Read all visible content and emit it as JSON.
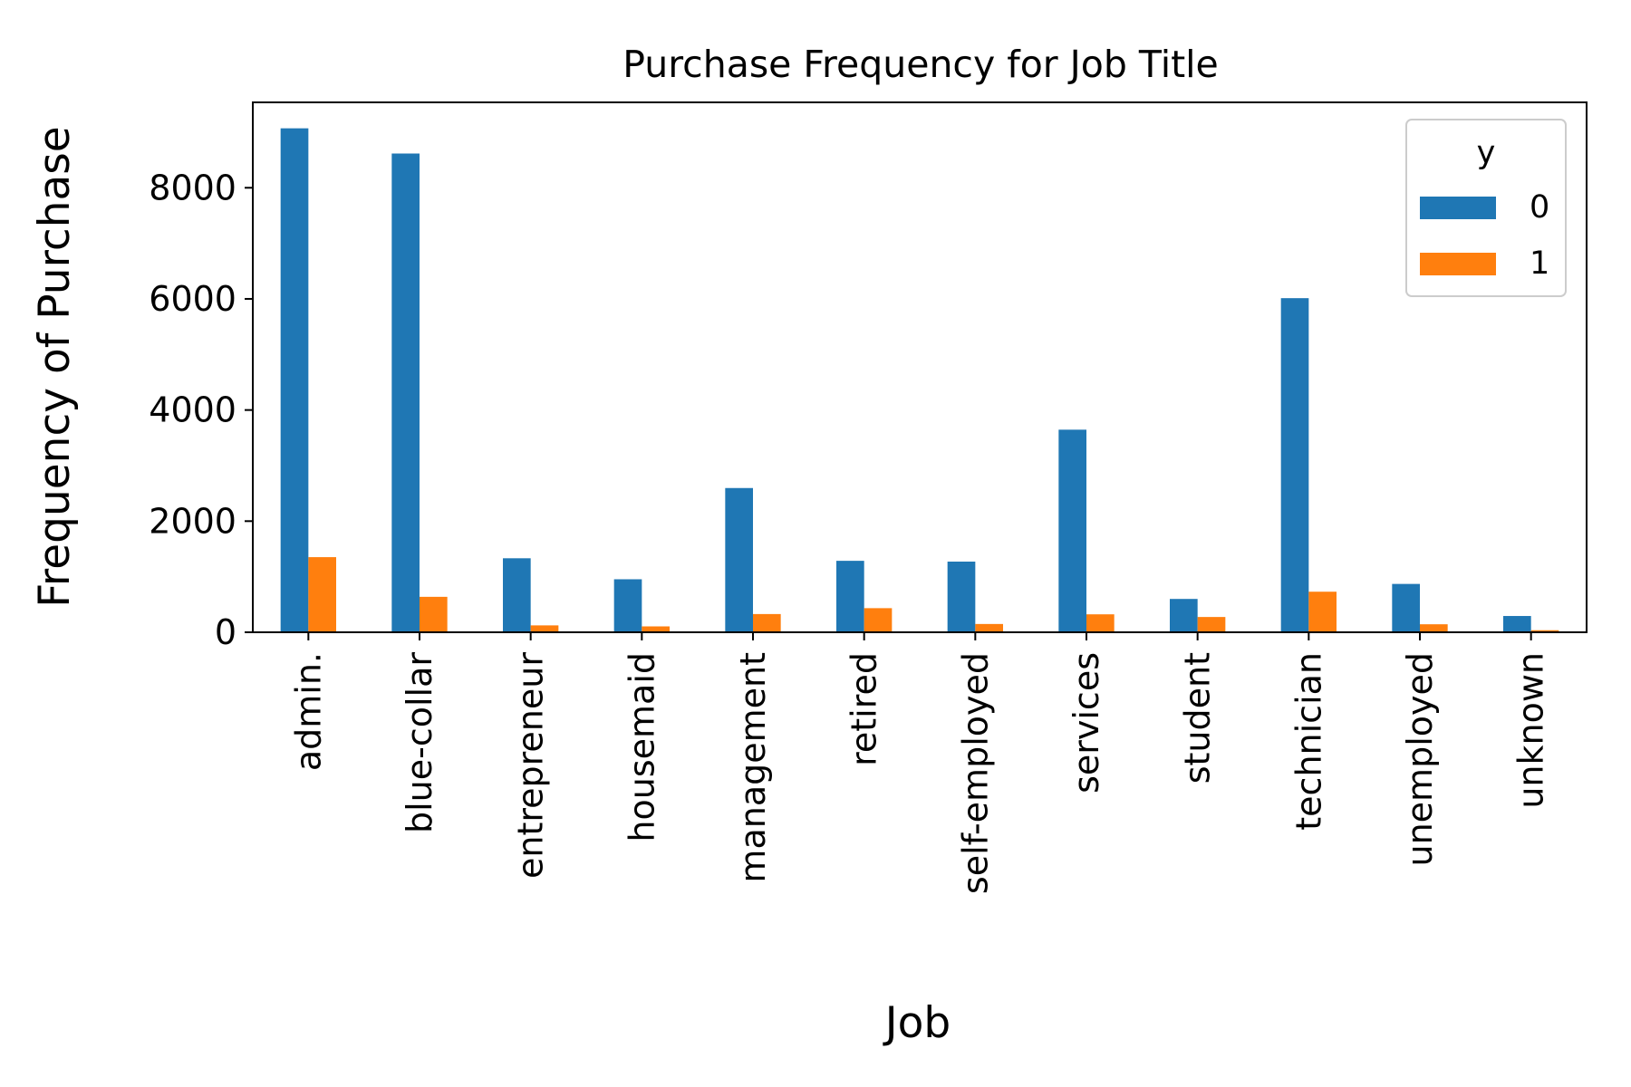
{
  "chart_data": {
    "type": "bar",
    "title": "Purchase Frequency for Job Title",
    "xlabel": "Job",
    "ylabel": "Frequency of Purchase",
    "categories": [
      "admin.",
      "blue-collar",
      "entrepreneur",
      "housemaid",
      "management",
      "retired",
      "self-employed",
      "services",
      "student",
      "technician",
      "unemployed",
      "unknown"
    ],
    "series": [
      {
        "name": "0",
        "color": "#1f77b4",
        "values": [
          9070,
          8616,
          1332,
          954,
          2596,
          1286,
          1272,
          3646,
          600,
          6013,
          870,
          293
        ]
      },
      {
        "name": "1",
        "color": "#ff7f0e",
        "values": [
          1352,
          638,
          124,
          106,
          328,
          434,
          149,
          323,
          275,
          730,
          144,
          37
        ]
      }
    ],
    "ylim": [
      0,
      9537
    ],
    "yticks": [
      0,
      2000,
      4000,
      6000,
      8000
    ],
    "legend": {
      "title": "y",
      "position": "top-right"
    },
    "grid": false
  }
}
